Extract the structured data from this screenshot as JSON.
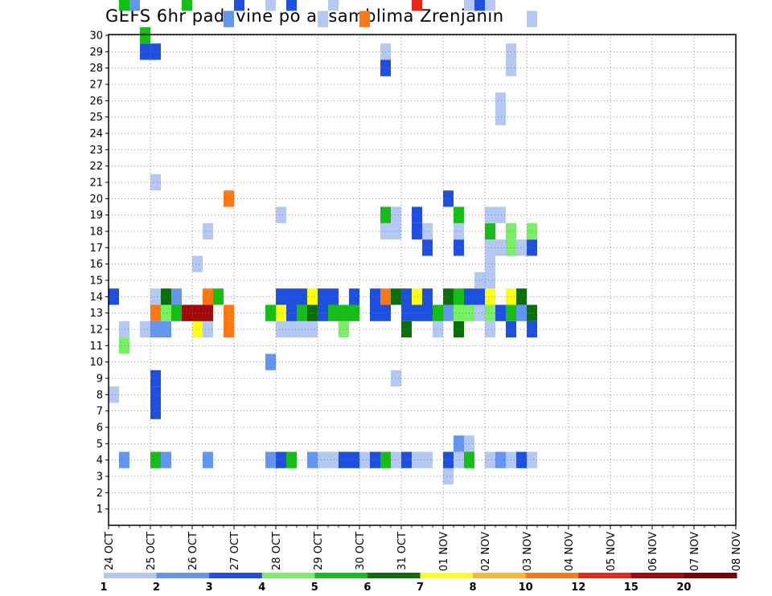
{
  "chart_data": {
    "type": "heatmap",
    "title": "GEFS 6hr padavine po ansamblima Zrenjanin",
    "xlabel": "",
    "ylabel": "",
    "x_ticks": [
      "24 OCT",
      "25 OCT",
      "26 OCT",
      "27 OCT",
      "28 OCT",
      "29 OCT",
      "30 OCT",
      "31 OCT",
      "01 NOV",
      "02 NOV",
      "03 NOV",
      "04 NOV",
      "05 NOV",
      "06 NOV",
      "07 NOV",
      "08 NOV"
    ],
    "y_ticks": [
      "1",
      "2",
      "3",
      "4",
      "5",
      "6",
      "7",
      "8",
      "9",
      "10",
      "11",
      "12",
      "13",
      "14",
      "15",
      "16",
      "17",
      "18",
      "19",
      "20",
      "21",
      "22",
      "23",
      "24",
      "25",
      "26",
      "27",
      "28",
      "29",
      "30"
    ],
    "y_range": [
      0,
      30
    ],
    "steps_per_day": 4,
    "grid": true,
    "legend_placement": "bottom",
    "colorbar": {
      "levels": [
        "1",
        "2",
        "3",
        "4",
        "5",
        "6",
        "7",
        "8",
        "10",
        "12",
        "15",
        "20"
      ],
      "colors": [
        "#b4c8f4",
        "#6496f0",
        "#1e50e0",
        "#78f064",
        "#14be14",
        "#0a6e0a",
        "#ffff14",
        "#ffb432",
        "#ff7814",
        "#e62814",
        "#a00a0a",
        "#780000"
      ]
    },
    "cells": [
      [
        8,
        0,
        0
      ],
      [
        14,
        0,
        2
      ],
      [
        54,
        0,
        11
      ],
      [
        58,
        0,
        13
      ],
      [
        59,
        0,
        12
      ],
      [
        60,
        0,
        10
      ],
      [
        61,
        0,
        2
      ],
      [
        4,
        1,
        1
      ],
      [
        11,
        1,
        3
      ],
      [
        12,
        1,
        0
      ],
      [
        32,
        1,
        4
      ],
      [
        36,
        1,
        0
      ],
      [
        37,
        1,
        9
      ],
      [
        32,
        2,
        1
      ],
      [
        36,
        2,
        0
      ],
      [
        37,
        2,
        2
      ],
      [
        12,
        3,
        0
      ],
      [
        29,
        3,
        2
      ],
      [
        30,
        3,
        4
      ],
      [
        42,
        3,
        0
      ],
      [
        48,
        3,
        3
      ],
      [
        57,
        3,
        4
      ],
      [
        58,
        3,
        8
      ],
      [
        4,
        4,
        4
      ],
      [
        7,
        4,
        2
      ],
      [
        8,
        4,
        2
      ],
      [
        9,
        4,
        2
      ],
      [
        12,
        4,
        1
      ],
      [
        13,
        4,
        8
      ],
      [
        14,
        4,
        0
      ],
      [
        21,
        4,
        0
      ],
      [
        29,
        4,
        2
      ],
      [
        39,
        4,
        0
      ],
      [
        49,
        4,
        1
      ],
      [
        50,
        4,
        9
      ],
      [
        51,
        4,
        4
      ],
      [
        52,
        4,
        3
      ],
      [
        54,
        4,
        0
      ],
      [
        60,
        4,
        2
      ],
      [
        4,
        5,
        1
      ],
      [
        12,
        5,
        1
      ],
      [
        13,
        5,
        3
      ],
      [
        14,
        5,
        5
      ],
      [
        36,
        5,
        0
      ],
      [
        40,
        5,
        4
      ],
      [
        41,
        5,
        0
      ],
      [
        50,
        5,
        1
      ],
      [
        51,
        5,
        1
      ],
      [
        52,
        5,
        4
      ],
      [
        54,
        5,
        0
      ],
      [
        55,
        5,
        1
      ],
      [
        13,
        6,
        4
      ],
      [
        14,
        6,
        1
      ],
      [
        58,
        6,
        0
      ],
      [
        59,
        6,
        0
      ],
      [
        13,
        7,
        10
      ],
      [
        32,
        7,
        4
      ],
      [
        12,
        8,
        6
      ],
      [
        13,
        8,
        10
      ],
      [
        16,
        8,
        0
      ],
      [
        4,
        9,
        1
      ],
      [
        12,
        9,
        0
      ],
      [
        13,
        9,
        10
      ],
      [
        14,
        9,
        8
      ],
      [
        18,
        9,
        0
      ],
      [
        56,
        9,
        0
      ],
      [
        59,
        9,
        1
      ],
      [
        60,
        9,
        1
      ],
      [
        61,
        9,
        8
      ],
      [
        14,
        10,
        4
      ],
      [
        33,
        10,
        0
      ],
      [
        58,
        10,
        0
      ],
      [
        12,
        11,
        8
      ],
      [
        13,
        11,
        8
      ],
      [
        20,
        11,
        8
      ],
      [
        31,
        11,
        1
      ],
      [
        59,
        11,
        4
      ],
      [
        60,
        11,
        11
      ],
      [
        61,
        11,
        4
      ],
      [
        32,
        12,
        2
      ],
      [
        34,
        12,
        0
      ],
      [
        35,
        12,
        9
      ],
      [
        41,
        12,
        5
      ],
      [
        42,
        12,
        0
      ],
      [
        47,
        12,
        0
      ],
      [
        48,
        12,
        2
      ],
      [
        57,
        12,
        0
      ],
      [
        4,
        15,
        1
      ],
      [
        10,
        15,
        1
      ],
      [
        13,
        15,
        4
      ],
      [
        32,
        15,
        0
      ],
      [
        53,
        15,
        0
      ],
      [
        54,
        15,
        2
      ],
      [
        4,
        16,
        2
      ],
      [
        12,
        16,
        0
      ],
      [
        13,
        16,
        6
      ],
      [
        14,
        16,
        2
      ],
      [
        19,
        16,
        0
      ],
      [
        33,
        16,
        5
      ],
      [
        35,
        16,
        0
      ],
      [
        43,
        16,
        0
      ],
      [
        4,
        17,
        4
      ],
      [
        12,
        17,
        0
      ],
      [
        13,
        17,
        2
      ],
      [
        14,
        17,
        2
      ],
      [
        32,
        17,
        2
      ],
      [
        33,
        17,
        2
      ],
      [
        12,
        18,
        0
      ],
      [
        13,
        18,
        4
      ],
      [
        14,
        18,
        2
      ],
      [
        55,
        18,
        0
      ],
      [
        4,
        19,
        1
      ],
      [
        12,
        19,
        0
      ],
      [
        13,
        19,
        5
      ],
      [
        14,
        19,
        6
      ],
      [
        53,
        19,
        0
      ],
      [
        54,
        19,
        1
      ],
      [
        4,
        20,
        0
      ],
      [
        13,
        20,
        2
      ],
      [
        14,
        20,
        2
      ],
      [
        31,
        20,
        0
      ],
      [
        45,
        20,
        0
      ],
      [
        46,
        20,
        0
      ],
      [
        54,
        20,
        1
      ],
      [
        4,
        21,
        0
      ],
      [
        13,
        21,
        4
      ],
      [
        14,
        21,
        2
      ],
      [
        32,
        21,
        0
      ],
      [
        41,
        21,
        0
      ],
      [
        45,
        21,
        0
      ],
      [
        46,
        21,
        0
      ],
      [
        55,
        21,
        0
      ],
      [
        56,
        21,
        0
      ],
      [
        58,
        21,
        4
      ],
      [
        4,
        22,
        2
      ],
      [
        12,
        22,
        3
      ],
      [
        13,
        22,
        4
      ],
      [
        33,
        22,
        8
      ],
      [
        34,
        22,
        5
      ],
      [
        44,
        22,
        0
      ],
      [
        46,
        22,
        5
      ],
      [
        47,
        22,
        4
      ],
      [
        48,
        22,
        7
      ],
      [
        49,
        22,
        2
      ],
      [
        53,
        22,
        0
      ],
      [
        4,
        23,
        2
      ],
      [
        13,
        23,
        4
      ],
      [
        14,
        23,
        2
      ],
      [
        44,
        23,
        3
      ],
      [
        47,
        23,
        0
      ],
      [
        4,
        24,
        0
      ],
      [
        31,
        24,
        8
      ],
      [
        4,
        25,
        2
      ],
      [
        13,
        25,
        2
      ],
      [
        14,
        25,
        2
      ],
      [
        33,
        25,
        0
      ],
      [
        40,
        25,
        0
      ],
      [
        41,
        25,
        0
      ],
      [
        51,
        25,
        2
      ],
      [
        62,
        25,
        1
      ],
      [
        4,
        26,
        4
      ],
      [
        13,
        26,
        2
      ],
      [
        14,
        26,
        8
      ],
      [
        18,
        26,
        0
      ],
      [
        19,
        26,
        4
      ],
      [
        28,
        26,
        2
      ],
      [
        29,
        26,
        0
      ],
      [
        33,
        26,
        0
      ],
      [
        36,
        26,
        0
      ],
      [
        37,
        26,
        0
      ],
      [
        51,
        26,
        5
      ],
      [
        52,
        26,
        4
      ],
      [
        59,
        26,
        6
      ],
      [
        4,
        27,
        0
      ],
      [
        9,
        27,
        0
      ],
      [
        14,
        27,
        5
      ],
      [
        14,
        28,
        3
      ],
      [
        18,
        27,
        0
      ],
      [
        19,
        27,
        0
      ],
      [
        33,
        27,
        0
      ],
      [
        34,
        27,
        4
      ],
      [
        35,
        27,
        0
      ],
      [
        36,
        27,
        0
      ],
      [
        4,
        28,
        2
      ],
      [
        12,
        28,
        5
      ],
      [
        13,
        28,
        2
      ],
      [
        14,
        28,
        2
      ],
      [
        33,
        28,
        2
      ],
      [
        34,
        28,
        4
      ],
      [
        44,
        28,
        2
      ],
      [
        45,
        28,
        2
      ],
      [
        57,
        28,
        0
      ],
      [
        58,
        28,
        6
      ],
      [
        59,
        28,
        4
      ],
      [
        62,
        28,
        2
      ],
      [
        4,
        29,
        0
      ],
      [
        13,
        29,
        2
      ],
      [
        14,
        29,
        6
      ],
      [
        18,
        29,
        2
      ],
      [
        19,
        29,
        2
      ],
      [
        32,
        29,
        9
      ],
      [
        33,
        29,
        2
      ],
      [
        44,
        29,
        0
      ],
      [
        45,
        29,
        2
      ],
      [
        53,
        29,
        10
      ],
      [
        54,
        29,
        2
      ],
      [
        4,
        30,
        0
      ],
      [
        13,
        30,
        2
      ],
      [
        14,
        30,
        2
      ],
      [
        17,
        30,
        2
      ],
      [
        18,
        30,
        0
      ],
      [
        33,
        30,
        0
      ],
      [
        39,
        30,
        0
      ],
      [
        40,
        30,
        2
      ],
      [
        41,
        30,
        0
      ],
      [
        50,
        30,
        0
      ],
      [
        51,
        30,
        2
      ],
      [
        52,
        30,
        3
      ],
      [
        12,
        31,
        0
      ],
      [
        13,
        31,
        4
      ],
      [
        34,
        31,
        0
      ],
      [
        35,
        31,
        5
      ],
      [
        38,
        31,
        0
      ],
      [
        40,
        31,
        0
      ],
      [
        41,
        31,
        2
      ],
      [
        48,
        31,
        0
      ],
      [
        49,
        31,
        0
      ],
      [
        50,
        31,
        0
      ],
      [
        51,
        31,
        2
      ],
      [
        3,
        32,
        0
      ],
      [
        4,
        32,
        2
      ],
      [
        13,
        32,
        1
      ],
      [
        14,
        32,
        5
      ],
      [
        20,
        32,
        2
      ],
      [
        39,
        32,
        4
      ],
      [
        40,
        32,
        5
      ],
      [
        45,
        32,
        0
      ],
      [
        46,
        32,
        1
      ],
      [
        53,
        32,
        0
      ],
      [
        54,
        32,
        2
      ],
      [
        4,
        33,
        0
      ],
      [
        5,
        33,
        1
      ],
      [
        12,
        33,
        5
      ],
      [
        13,
        33,
        3
      ],
      [
        14,
        33,
        4
      ],
      [
        17,
        33,
        2
      ],
      [
        18,
        33,
        0
      ],
      [
        19,
        33,
        4
      ],
      [
        35,
        33,
        0
      ],
      [
        36,
        33,
        5
      ],
      [
        37,
        33,
        4
      ],
      [
        4,
        34,
        4
      ],
      [
        5,
        34,
        0
      ],
      [
        13,
        34,
        3
      ],
      [
        14,
        34,
        2
      ],
      [
        32,
        34,
        0
      ],
      [
        33,
        34,
        2
      ],
      [
        45,
        34,
        0
      ],
      [
        46,
        34,
        1
      ],
      [
        53,
        34,
        0
      ],
      [
        54,
        34,
        3
      ],
      [
        55,
        34,
        0
      ],
      [
        13,
        35,
        0
      ],
      [
        14,
        35,
        2
      ],
      [
        15,
        35,
        0
      ],
      [
        32,
        35,
        2
      ],
      [
        33,
        35,
        0
      ],
      [
        42,
        35,
        0
      ],
      [
        43,
        35,
        0
      ],
      [
        54,
        35,
        1
      ],
      [
        56,
        35,
        2
      ],
      [
        4,
        36,
        0
      ],
      [
        12,
        36,
        0
      ],
      [
        13,
        36,
        3
      ],
      [
        14,
        36,
        6
      ],
      [
        15,
        36,
        0
      ],
      [
        16,
        36,
        0
      ],
      [
        17,
        36,
        0
      ],
      [
        18,
        36,
        4
      ],
      [
        19,
        36,
        0
      ],
      [
        32,
        36,
        0
      ],
      [
        33,
        36,
        2
      ],
      [
        34,
        36,
        5
      ],
      [
        35,
        36,
        3
      ],
      [
        55,
        36,
        5
      ],
      [
        56,
        36,
        3
      ],
      [
        57,
        36,
        3
      ],
      [
        4,
        37,
        1
      ],
      [
        13,
        37,
        2
      ],
      [
        17,
        37,
        0
      ],
      [
        19,
        37,
        0
      ],
      [
        25,
        37,
        0
      ],
      [
        26,
        37,
        0
      ],
      [
        33,
        37,
        0
      ],
      [
        37,
        37,
        0
      ],
      [
        38,
        37,
        0
      ],
      [
        40,
        37,
        0
      ],
      [
        41,
        37,
        6
      ],
      [
        42,
        37,
        0
      ],
      [
        51,
        37,
        1
      ],
      [
        52,
        37,
        6
      ],
      [
        53,
        37,
        4
      ],
      [
        54,
        37,
        0
      ],
      [
        58,
        37,
        0
      ],
      [
        59,
        37,
        3
      ],
      [
        4,
        38,
        0
      ],
      [
        12,
        38,
        2
      ],
      [
        13,
        38,
        4
      ],
      [
        14,
        38,
        6
      ],
      [
        17,
        38,
        3
      ],
      [
        18,
        38,
        3
      ],
      [
        28,
        38,
        0
      ],
      [
        29,
        38,
        0
      ],
      [
        33,
        38,
        0
      ],
      [
        34,
        38,
        2
      ],
      [
        36,
        38,
        2
      ],
      [
        37,
        38,
        0
      ],
      [
        38,
        38,
        0
      ],
      [
        39,
        38,
        0
      ],
      [
        40,
        38,
        2
      ],
      [
        48,
        38,
        0
      ],
      [
        49,
        38,
        0
      ],
      [
        50,
        38,
        6
      ],
      [
        51,
        38,
        8
      ],
      [
        52,
        38,
        3
      ],
      [
        4,
        39,
        2
      ],
      [
        13,
        39,
        1
      ],
      [
        14,
        39,
        5
      ],
      [
        17,
        39,
        0
      ],
      [
        38,
        39,
        0
      ],
      [
        39,
        39,
        5
      ],
      [
        40,
        39,
        0
      ],
      [
        44,
        39,
        1
      ],
      [
        45,
        39,
        0
      ],
      [
        49,
        39,
        0
      ],
      [
        50,
        39,
        2
      ],
      [
        4,
        40,
        0
      ],
      [
        12,
        40,
        2
      ],
      [
        13,
        40,
        5
      ],
      [
        17,
        40,
        2
      ],
      [
        18,
        40,
        3
      ],
      [
        42,
        40,
        0
      ],
      [
        43,
        40,
        0
      ],
      [
        49,
        40,
        0
      ],
      [
        50,
        40,
        0
      ],
      [
        31,
        40,
        0
      ],
      [
        48,
        40,
        0
      ]
    ]
  }
}
